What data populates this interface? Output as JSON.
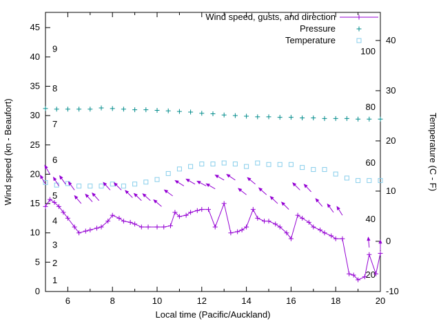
{
  "chart_data": {
    "type": "line",
    "title": "",
    "x_axis": {
      "label": "Local time (Pacific/Auckland)",
      "range": [
        5,
        20
      ],
      "major_ticks": [
        6,
        8,
        10,
        12,
        14,
        16,
        18,
        20
      ],
      "minor_tick_step": 1
    },
    "y_left": {
      "label": "Wind speed (kn - Beaufort)",
      "range": [
        0,
        47.6
      ],
      "ticks": [
        0,
        5,
        10,
        15,
        20,
        25,
        30,
        35,
        40,
        45
      ]
    },
    "y_right": {
      "label": "Temperature (C - F)",
      "range": [
        -10,
        45.6
      ],
      "ticks": [
        -10,
        0,
        10,
        20,
        30,
        40
      ]
    },
    "beaufort_scale": [
      {
        "label": "1",
        "kn": 1.9
      },
      {
        "label": "2",
        "kn": 4.8
      },
      {
        "label": "3",
        "kn": 7.9
      },
      {
        "label": "4",
        "kn": 12.0
      },
      {
        "label": "5",
        "kn": 16.3
      },
      {
        "label": "6",
        "kn": 22.4
      },
      {
        "label": "7",
        "kn": 28.5
      },
      {
        "label": "8",
        "kn": 34.6
      },
      {
        "label": "9",
        "kn": 41.3
      }
    ],
    "fahrenheit_scale": [
      {
        "label": "20",
        "c": -6.7
      },
      {
        "label": "40",
        "c": 4.4
      },
      {
        "label": "60",
        "c": 15.6
      },
      {
        "label": "80",
        "c": 26.7
      },
      {
        "label": "100",
        "c": 37.8
      }
    ],
    "legend": {
      "position": "top-right-inside",
      "entries": [
        "wind_speed",
        "pressure",
        "temperature"
      ]
    },
    "series": [
      {
        "id": "wind_speed",
        "name": "Wind speed, gusts, and direction",
        "type": "line+points",
        "marker": "plus",
        "color": "#9400d3",
        "axis": "left",
        "points": [
          [
            5.0,
            14.5
          ],
          [
            5.2,
            15.7
          ],
          [
            5.4,
            15.2
          ],
          [
            5.6,
            14.5
          ],
          [
            5.8,
            13.5
          ],
          [
            6.0,
            12.5
          ],
          [
            6.3,
            11.0
          ],
          [
            6.5,
            10.0
          ],
          [
            6.8,
            10.3
          ],
          [
            7.0,
            10.5
          ],
          [
            7.3,
            10.8
          ],
          [
            7.5,
            11.0
          ],
          [
            7.8,
            12.0
          ],
          [
            8.0,
            13.0
          ],
          [
            8.3,
            12.5
          ],
          [
            8.5,
            12.0
          ],
          [
            8.8,
            11.8
          ],
          [
            9.0,
            11.5
          ],
          [
            9.3,
            11.0
          ],
          [
            9.6,
            11.0
          ],
          [
            10.0,
            11.0
          ],
          [
            10.3,
            11.0
          ],
          [
            10.6,
            11.2
          ],
          [
            10.8,
            13.5
          ],
          [
            11.0,
            12.8
          ],
          [
            11.3,
            13.0
          ],
          [
            11.5,
            13.5
          ],
          [
            11.8,
            13.8
          ],
          [
            12.0,
            14.0
          ],
          [
            12.3,
            14.0
          ],
          [
            12.6,
            11.0
          ],
          [
            13.0,
            15.0
          ],
          [
            13.3,
            10.0
          ],
          [
            13.6,
            10.2
          ],
          [
            13.8,
            10.5
          ],
          [
            14.0,
            11.0
          ],
          [
            14.3,
            14.0
          ],
          [
            14.5,
            12.5
          ],
          [
            14.8,
            12.0
          ],
          [
            15.0,
            12.0
          ],
          [
            15.3,
            11.5
          ],
          [
            15.5,
            11.0
          ],
          [
            15.8,
            10.0
          ],
          [
            16.0,
            9.0
          ],
          [
            16.3,
            13.0
          ],
          [
            16.5,
            12.5
          ],
          [
            16.8,
            11.8
          ],
          [
            17.0,
            11.0
          ],
          [
            17.3,
            10.5
          ],
          [
            17.5,
            10.0
          ],
          [
            17.8,
            9.5
          ],
          [
            18.0,
            9.0
          ],
          [
            18.3,
            9.0
          ],
          [
            18.6,
            3.0
          ],
          [
            18.8,
            2.8
          ],
          [
            19.0,
            2.0
          ],
          [
            19.3,
            2.5
          ],
          [
            19.5,
            6.3
          ],
          [
            19.8,
            3.0
          ],
          [
            20.0,
            6.5
          ]
        ]
      },
      {
        "id": "wind_gusts",
        "name": "Wind gusts (direction arrows)",
        "type": "arrows",
        "color": "#9400d3",
        "axis": "left",
        "arrows": [
          [
            5.0,
            18.3,
            -30
          ],
          [
            5.2,
            20.0,
            -30
          ],
          [
            5.6,
            18.0,
            -32
          ],
          [
            5.9,
            18.3,
            -35
          ],
          [
            6.3,
            17.3,
            -36
          ],
          [
            6.6,
            15.0,
            -40
          ],
          [
            7.1,
            15.3,
            -42
          ],
          [
            7.4,
            15.5,
            -42
          ],
          [
            7.9,
            17.3,
            -42
          ],
          [
            8.4,
            17.3,
            -45
          ],
          [
            8.9,
            16.0,
            -45
          ],
          [
            9.3,
            15.5,
            -46
          ],
          [
            9.7,
            15.5,
            -48
          ],
          [
            10.2,
            14.5,
            -50
          ],
          [
            10.7,
            16.3,
            -54
          ],
          [
            11.2,
            18.0,
            -58
          ],
          [
            11.7,
            18.3,
            -60
          ],
          [
            12.2,
            18.0,
            -62
          ],
          [
            12.6,
            17.5,
            -60
          ],
          [
            13.0,
            19.0,
            -60
          ],
          [
            13.5,
            19.0,
            -56
          ],
          [
            14.0,
            16.5,
            -52
          ],
          [
            14.4,
            18.3,
            -50
          ],
          [
            14.9,
            16.5,
            -48
          ],
          [
            15.4,
            15.0,
            -46
          ],
          [
            15.9,
            14.0,
            -45
          ],
          [
            16.4,
            17.3,
            -45
          ],
          [
            16.9,
            17.0,
            -43
          ],
          [
            17.4,
            14.5,
            -40
          ],
          [
            17.9,
            13.5,
            -36
          ],
          [
            18.3,
            13.0,
            -32
          ],
          [
            19.5,
            7.5,
            -5
          ],
          [
            20.0,
            7.0,
            0
          ]
        ]
      },
      {
        "id": "pressure",
        "name": "Pressure",
        "type": "points",
        "marker": "plus",
        "color": "#008b8b",
        "axis": "left",
        "points": [
          [
            5.0,
            31.2
          ],
          [
            5.5,
            31.1
          ],
          [
            6.0,
            31.1
          ],
          [
            6.5,
            31.1
          ],
          [
            7.0,
            31.1
          ],
          [
            7.5,
            31.3
          ],
          [
            8.0,
            31.2
          ],
          [
            8.5,
            31.1
          ],
          [
            9.0,
            31.0
          ],
          [
            9.5,
            31.0
          ],
          [
            10.0,
            30.9
          ],
          [
            10.5,
            30.8
          ],
          [
            11.0,
            30.7
          ],
          [
            11.5,
            30.6
          ],
          [
            12.0,
            30.4
          ],
          [
            12.5,
            30.3
          ],
          [
            13.0,
            30.1
          ],
          [
            13.5,
            30.0
          ],
          [
            14.0,
            29.9
          ],
          [
            14.5,
            29.8
          ],
          [
            15.0,
            29.8
          ],
          [
            15.5,
            29.7
          ],
          [
            16.0,
            29.7
          ],
          [
            16.5,
            29.6
          ],
          [
            17.0,
            29.6
          ],
          [
            17.5,
            29.5
          ],
          [
            18.0,
            29.5
          ],
          [
            18.5,
            29.5
          ],
          [
            19.0,
            29.4
          ],
          [
            19.5,
            29.4
          ],
          [
            20.0,
            29.4
          ]
        ]
      },
      {
        "id": "temperature",
        "name": "Temperature",
        "type": "points",
        "marker": "square-open",
        "color": "#87ceeb",
        "axis": "right",
        "points": [
          [
            5.0,
            11.7
          ],
          [
            5.5,
            11.2
          ],
          [
            6.0,
            11.5
          ],
          [
            6.5,
            11.0
          ],
          [
            7.0,
            11.0
          ],
          [
            7.5,
            11.0
          ],
          [
            8.0,
            11.4
          ],
          [
            8.5,
            11.0
          ],
          [
            9.0,
            11.4
          ],
          [
            9.5,
            11.8
          ],
          [
            10.0,
            12.3
          ],
          [
            10.5,
            13.5
          ],
          [
            11.0,
            14.4
          ],
          [
            11.5,
            14.9
          ],
          [
            12.0,
            15.4
          ],
          [
            12.5,
            15.4
          ],
          [
            13.0,
            15.6
          ],
          [
            13.5,
            15.4
          ],
          [
            14.0,
            14.9
          ],
          [
            14.5,
            15.6
          ],
          [
            15.0,
            15.3
          ],
          [
            15.5,
            15.3
          ],
          [
            16.0,
            15.3
          ],
          [
            16.5,
            14.7
          ],
          [
            17.0,
            14.3
          ],
          [
            17.5,
            14.3
          ],
          [
            18.0,
            13.4
          ],
          [
            18.5,
            12.6
          ],
          [
            19.0,
            12.1
          ],
          [
            19.5,
            12.1
          ],
          [
            20.0,
            12.1
          ]
        ]
      }
    ]
  }
}
